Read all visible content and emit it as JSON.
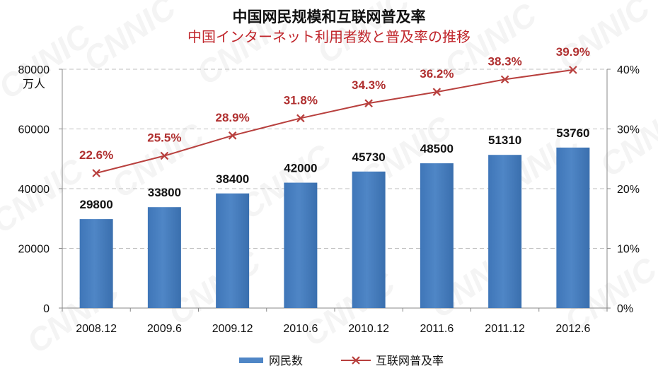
{
  "title": "中国网民规模和互联网普及率",
  "subtitle": "中国インターネット利用者数と普及率の推移",
  "watermark": "CNNIC",
  "left_axis_unit": "万人",
  "colors": {
    "bar": "#4f86c6",
    "line": "#b8403e",
    "label_line": "#b03030",
    "grid": "#bfbfbf"
  },
  "chart_data": {
    "type": "bar",
    "categories": [
      "2008.12",
      "2009.6",
      "2009.12",
      "2010.6",
      "2010.12",
      "2011.6",
      "2011.12",
      "2012.6"
    ],
    "series": [
      {
        "name": "网民数",
        "type": "bar",
        "axis": "left",
        "values": [
          29800,
          33800,
          38400,
          42000,
          45730,
          48500,
          51310,
          53760
        ]
      },
      {
        "name": "互联网普及率",
        "type": "line",
        "axis": "right",
        "values": [
          22.6,
          25.5,
          28.9,
          31.8,
          34.3,
          36.2,
          38.3,
          39.9
        ]
      }
    ],
    "y_left": {
      "lim": [
        0,
        80000
      ],
      "ticks": [
        0,
        20000,
        40000,
        60000,
        80000
      ],
      "unit": "万人"
    },
    "y_right": {
      "lim": [
        0,
        40
      ],
      "ticks": [
        "0%",
        "10%",
        "20%",
        "30%",
        "40%"
      ]
    },
    "grid": true,
    "legend_position": "bottom",
    "bar_labels": [
      "29800",
      "33800",
      "38400",
      "42000",
      "45730",
      "48500",
      "51310",
      "53760"
    ],
    "line_labels": [
      "22.6%",
      "25.5%",
      "28.9%",
      "31.8%",
      "34.3%",
      "36.2%",
      "38.3%",
      "39.9%"
    ]
  }
}
